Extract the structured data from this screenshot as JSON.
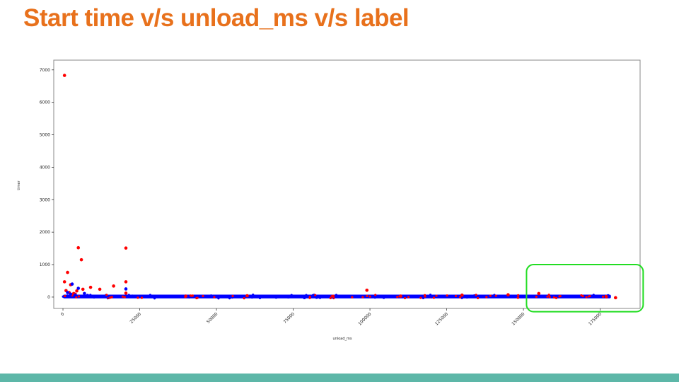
{
  "slide": {
    "title": "Start time v/s unload_ms v/s label"
  },
  "colors": {
    "title": "#e8711c",
    "footer_bar": "#5db7a8",
    "series_red": "#ff0000",
    "series_blue": "#0000ff",
    "highlight_box": "#22dd22"
  },
  "chart_data": {
    "type": "scatter",
    "xlabel": "unload_ms",
    "ylabel": "timer",
    "xlim": [
      -3000,
      188000
    ],
    "ylim": [
      -350,
      7300
    ],
    "x_ticks": [
      0,
      25000,
      50000,
      75000,
      100000,
      125000,
      150000,
      175000
    ],
    "x_tick_labels": [
      "0",
      "25000",
      "50000",
      "75000",
      "100000",
      "125000",
      "150000",
      "175000"
    ],
    "y_ticks": [
      0,
      1000,
      2000,
      3000,
      4000,
      5000,
      6000,
      7000
    ],
    "y_tick_labels": [
      "0",
      "1000",
      "2000",
      "3000",
      "4000",
      "5000",
      "6000",
      "7000"
    ],
    "grid": false,
    "series": [
      {
        "color": "#ff0000",
        "points": [
          [
            500,
            6830
          ],
          [
            5000,
            1520
          ],
          [
            20500,
            1510
          ],
          [
            6000,
            1150
          ],
          [
            1500,
            760
          ],
          [
            500,
            470
          ],
          [
            20500,
            470
          ],
          [
            2500,
            380
          ],
          [
            16500,
            340
          ],
          [
            9000,
            300
          ],
          [
            12000,
            240
          ],
          [
            6500,
            240
          ],
          [
            1000,
            200
          ],
          [
            4500,
            190
          ],
          [
            2000,
            140
          ],
          [
            3500,
            110
          ],
          [
            20500,
            120
          ],
          [
            4000,
            90
          ],
          [
            99000,
            210
          ],
          [
            155000,
            110
          ],
          [
            145000,
            70
          ],
          [
            130000,
            60
          ],
          [
            180000,
            -20
          ],
          [
            177000,
            10
          ],
          [
            60000,
            40
          ],
          [
            40000,
            30
          ],
          [
            88000,
            25
          ],
          [
            110000,
            30
          ]
        ]
      },
      {
        "color": "#0000ff",
        "points": [
          [
            3000,
            400
          ],
          [
            5000,
            270
          ],
          [
            20500,
            250
          ],
          [
            1500,
            140
          ],
          [
            7000,
            110
          ],
          [
            2500,
            90
          ],
          [
            4000,
            60
          ],
          [
            8000,
            50
          ]
        ]
      }
    ],
    "dense_band": {
      "x_range": [
        0,
        178500
      ],
      "y_range": [
        -40,
        75
      ]
    },
    "highlight_region": {
      "x_range": [
        151000,
        189000
      ],
      "y_range": [
        -450,
        1000
      ]
    }
  }
}
